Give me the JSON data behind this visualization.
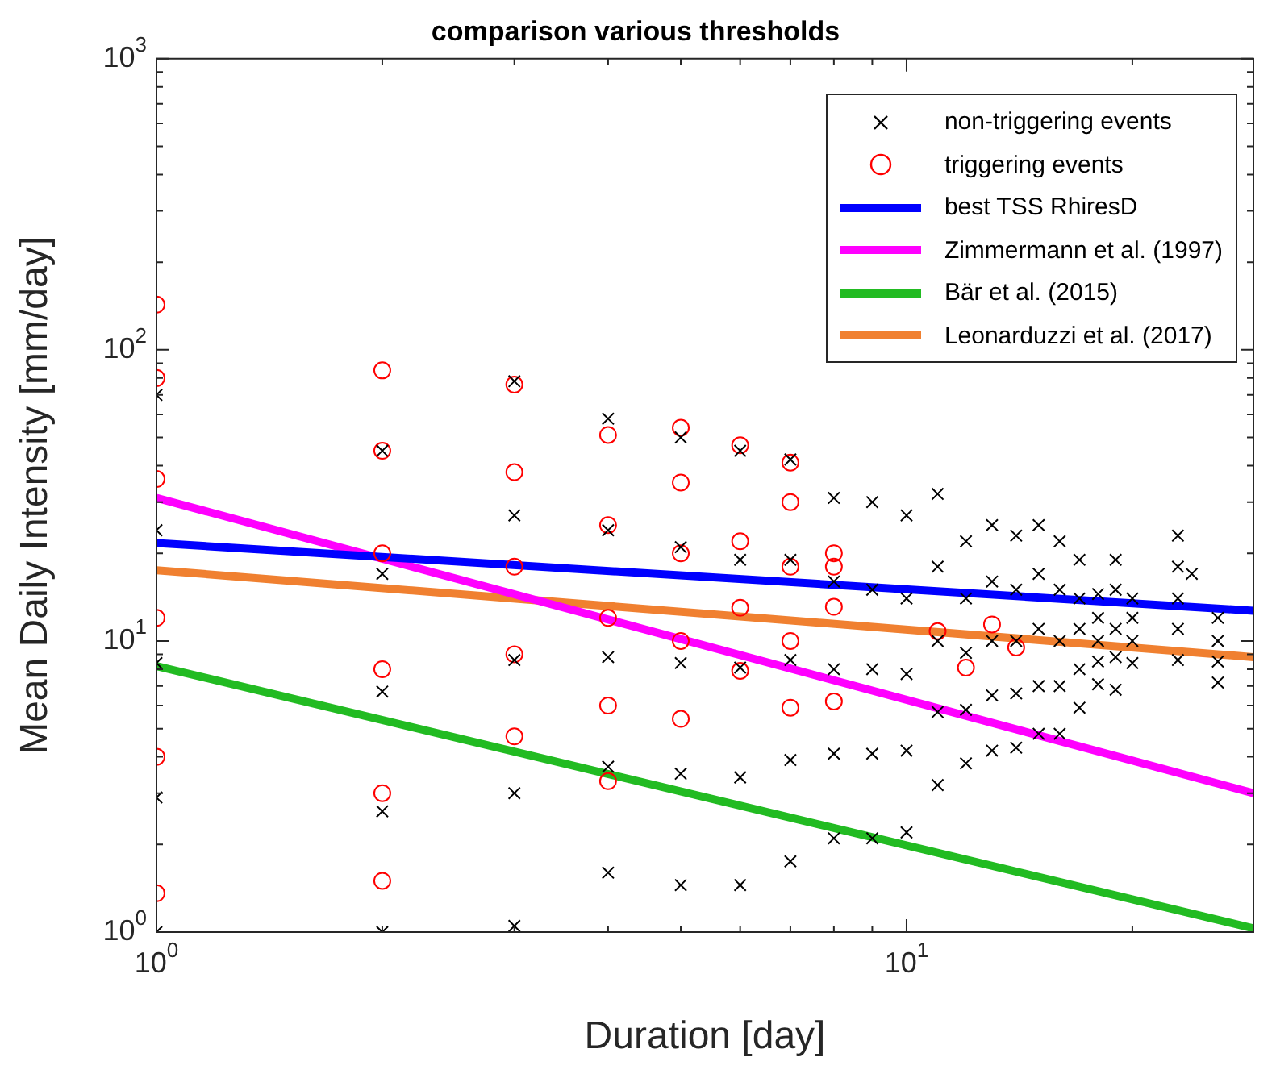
{
  "chart_data": {
    "type": "scatter",
    "title": "comparison various thresholds",
    "xlabel": "Duration [day]",
    "ylabel": "Mean Daily Intensity [mm/day]",
    "log": "xy",
    "grid": false,
    "legend": "top right",
    "xlim": [
      1,
      29
    ],
    "xticks": [
      {
        "value": 1,
        "label": "10$^{0}$"
      },
      {
        "value": 10,
        "label": "10$^{1}$"
      }
    ],
    "ylim": [
      1,
      1000
    ],
    "yticks": [
      {
        "value": 1,
        "label": "10$^{0}$"
      },
      {
        "value": 10,
        "label": "10$^{1}$"
      },
      {
        "value": 100,
        "label": "10$^{2}$"
      },
      {
        "value": 1000,
        "label": "10$^{3}$"
      }
    ],
    "series": [
      {
        "name": "non-triggering events",
        "type": "scatter",
        "marker": "cross",
        "color": "#000000",
        "x": [
          1,
          1,
          1,
          1,
          1,
          2,
          2,
          2,
          2,
          2,
          3,
          3,
          3,
          3,
          3,
          4,
          4,
          4,
          4,
          4,
          5,
          5,
          5,
          5,
          5,
          6,
          6,
          6,
          6,
          6,
          7,
          7,
          7,
          7,
          7,
          8,
          8,
          8,
          8,
          8,
          9,
          9,
          9,
          9,
          9,
          10,
          10,
          10,
          10,
          10,
          11,
          11,
          11,
          11,
          11,
          12,
          12,
          12,
          12,
          12,
          13,
          13,
          13,
          13,
          13,
          14,
          14,
          14,
          14,
          14,
          15,
          15,
          15,
          15,
          15,
          16,
          16,
          16,
          16,
          16,
          17,
          17,
          17,
          17,
          17,
          18,
          18,
          18,
          18,
          18,
          19,
          19,
          19,
          19,
          19,
          20,
          20,
          20,
          20,
          23,
          23,
          23,
          23,
          23,
          24,
          26,
          26,
          26,
          26
        ],
        "values": [
          1.0,
          2.9,
          8.4,
          24,
          70,
          1.0,
          2.6,
          6.7,
          17,
          45,
          1.05,
          3.0,
          8.6,
          27,
          78,
          1.6,
          3.7,
          8.8,
          24,
          58,
          1.45,
          3.5,
          8.4,
          21,
          50,
          1.45,
          3.4,
          8.1,
          19,
          45,
          1.75,
          3.9,
          8.6,
          19,
          42,
          2.1,
          4.1,
          8.0,
          16,
          31,
          2.1,
          4.1,
          8.0,
          15,
          30,
          2.2,
          4.2,
          7.7,
          14,
          27,
          3.2,
          5.7,
          10,
          18,
          32,
          3.8,
          5.8,
          9.1,
          14,
          22,
          4.2,
          6.5,
          10,
          16,
          25,
          4.3,
          6.6,
          10,
          15,
          23,
          4.8,
          7.0,
          11,
          17,
          25,
          4.8,
          7.0,
          10,
          15,
          22,
          5.9,
          8.0,
          11,
          14,
          19,
          7.1,
          8.5,
          10,
          12,
          14.5,
          6.8,
          8.8,
          11,
          15,
          19,
          8.4,
          10,
          12,
          14,
          8.6,
          11,
          14,
          18,
          23,
          17,
          7.2,
          8.5,
          10,
          12
        ]
      },
      {
        "name": "triggering events",
        "type": "scatter",
        "marker": "circle",
        "color": "#ff0000",
        "x": [
          1,
          1,
          1,
          1,
          1,
          1,
          2,
          2,
          2,
          2,
          2,
          2,
          3,
          3,
          3,
          3,
          3,
          4,
          4,
          4,
          4,
          4,
          5,
          5,
          5,
          5,
          5,
          6,
          6,
          6,
          6,
          7,
          7,
          7,
          7,
          7,
          8,
          8,
          8,
          8,
          11,
          12,
          13,
          14
        ],
        "values": [
          1.36,
          4.0,
          12,
          36,
          80,
          143,
          1.5,
          3.0,
          8,
          20,
          45,
          85,
          4.7,
          9,
          18,
          38,
          76,
          3.3,
          6,
          12,
          25,
          51,
          5.4,
          10,
          20,
          35,
          54,
          7.9,
          13,
          22,
          47,
          5.9,
          10,
          18,
          30,
          41,
          6.2,
          13.1,
          18,
          20,
          10.8,
          8.1,
          11.4,
          9.5
        ]
      },
      {
        "name": "best TSS RhiresD",
        "type": "line",
        "color": "#0000ff",
        "x": [
          1,
          29
        ],
        "values": [
          21.7,
          12.7
        ]
      },
      {
        "name": "Zimmermann et al. (1997)",
        "type": "line",
        "color": "#ff00ff",
        "x": [
          1,
          29
        ],
        "values": [
          31,
          3.0
        ]
      },
      {
        "name": "Bär et al. (2015)",
        "type": "line",
        "color": "#22bb22",
        "x": [
          1,
          29
        ],
        "values": [
          8.2,
          1.03
        ]
      },
      {
        "name": "Leonarduzzi et al. (2017)",
        "type": "line",
        "color": "#f08030",
        "x": [
          1,
          29
        ],
        "values": [
          17.5,
          8.8
        ]
      }
    ]
  }
}
